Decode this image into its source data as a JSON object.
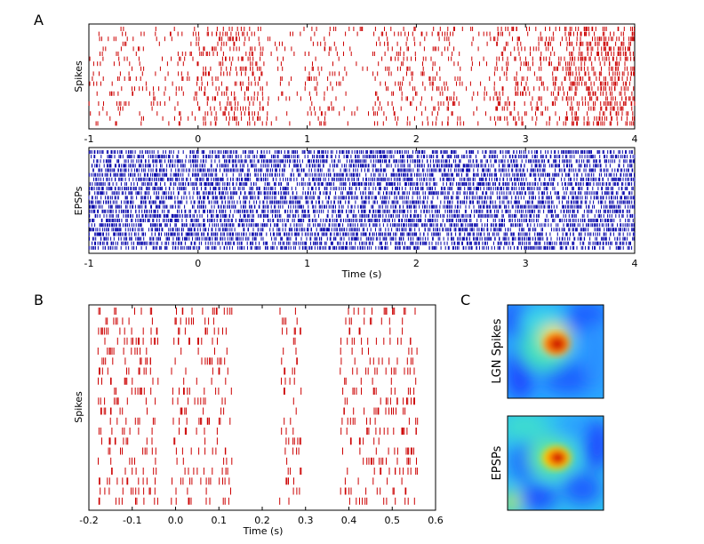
{
  "chart_data": [
    {
      "panel": "A",
      "type": "raster",
      "title": "",
      "ylabel": "Spikes",
      "xlabel": "",
      "xlim": [
        -1,
        4
      ],
      "xticks": [
        "-1",
        "0",
        "1",
        "2",
        "3",
        "4"
      ],
      "color": "#cc0000",
      "trials": 20,
      "events": "dense spike raster; sparse before 0 s, bursts at 0-0.6 s, 1-1.3 s, 1.6-2.4 s, 2.7-4 s with strongest firing 3.4-4 s"
    },
    {
      "panel": "A",
      "type": "raster",
      "title": "",
      "ylabel": "EPSPs",
      "xlabel": "Time (s)",
      "xlim": [
        -1,
        4
      ],
      "xticks": [
        "-1",
        "0",
        "1",
        "2",
        "3",
        "4"
      ],
      "color": "#0000aa",
      "trials": 22,
      "events": "dense EPSP raster throughout -1 to 4 s"
    },
    {
      "panel": "B",
      "type": "raster",
      "title": "",
      "ylabel": "Spikes",
      "xlabel": "Time (s)",
      "xlim": [
        -0.2,
        0.6
      ],
      "xticks": [
        "-0.2",
        "-0.1",
        "0.0",
        "0.1",
        "0.2",
        "0.3",
        "0.4",
        "0.5",
        "0.6"
      ],
      "color": "#cc0000",
      "trials": 20,
      "bursts_s": [
        [
          -0.18,
          -0.04
        ],
        [
          -0.01,
          0.13
        ],
        [
          0.24,
          0.29
        ],
        [
          0.38,
          0.56
        ]
      ]
    },
    {
      "panel": "C",
      "type": "heatmap",
      "title": "",
      "labels": [
        "LGN Spikes",
        "EPSPs"
      ],
      "colormap": "jet",
      "peak": "single red hot spot near center-right of each map"
    }
  ],
  "panel_labels": {
    "a": "A",
    "b": "B",
    "c": "C"
  },
  "colors": {
    "spikes": "#cc0000",
    "epsps": "#0000aa"
  }
}
